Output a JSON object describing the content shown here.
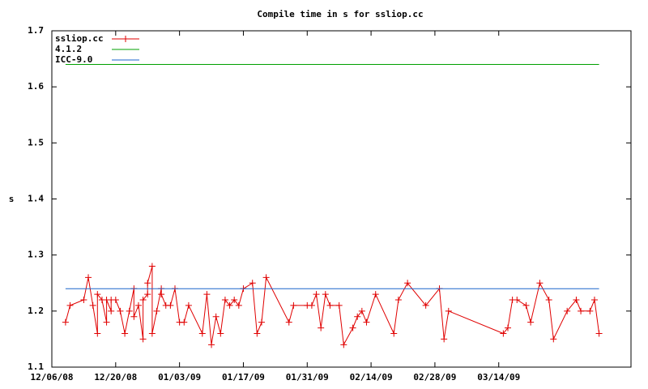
{
  "chart_data": {
    "type": "line",
    "title": "Compile time in s for ssliop.cc",
    "y_label": "s",
    "xlim": [
      "2008-12-06",
      "2009-04-12"
    ],
    "xticks": [
      {
        "value": "2008-12-06",
        "label": "12/06/08"
      },
      {
        "value": "2008-12-20",
        "label": "12/20/08"
      },
      {
        "value": "2009-01-03",
        "label": "01/03/09"
      },
      {
        "value": "2009-01-17",
        "label": "01/17/09"
      },
      {
        "value": "2009-01-31",
        "label": "01/31/09"
      },
      {
        "value": "2009-02-14",
        "label": "02/14/09"
      },
      {
        "value": "2009-02-28",
        "label": "02/28/09"
      },
      {
        "value": "2009-03-14",
        "label": "03/14/09"
      }
    ],
    "ylim": [
      1.1,
      1.7
    ],
    "yticks": [
      1.1,
      1.2,
      1.3,
      1.4,
      1.5,
      1.6,
      1.7
    ],
    "legend": "top-left",
    "series": [
      {
        "name": "ssliop.cc",
        "color": "#e00000",
        "marker": "plus",
        "x": [
          "2008-12-09",
          "2008-12-10",
          "2008-12-13",
          "2008-12-14",
          "2008-12-15",
          "2008-12-16",
          "2008-12-16",
          "2008-12-17",
          "2008-12-18",
          "2008-12-18",
          "2008-12-19",
          "2008-12-19",
          "2008-12-20",
          "2008-12-21",
          "2008-12-22",
          "2008-12-23",
          "2008-12-24",
          "2008-12-24",
          "2008-12-25",
          "2008-12-26",
          "2008-12-26",
          "2008-12-27",
          "2008-12-27",
          "2008-12-28",
          "2008-12-28",
          "2008-12-29",
          "2008-12-30",
          "2008-12-30",
          "2008-12-31",
          "2009-01-01",
          "2009-01-02",
          "2009-01-03",
          "2009-01-04",
          "2009-01-05",
          "2009-01-08",
          "2009-01-09",
          "2009-01-10",
          "2009-01-11",
          "2009-01-12",
          "2009-01-13",
          "2009-01-14",
          "2009-01-15",
          "2009-01-16",
          "2009-01-17",
          "2009-01-19",
          "2009-01-20",
          "2009-01-21",
          "2009-01-22",
          "2009-01-27",
          "2009-01-28",
          "2009-01-31",
          "2009-02-01",
          "2009-02-02",
          "2009-02-03",
          "2009-02-04",
          "2009-02-05",
          "2009-02-07",
          "2009-02-08",
          "2009-02-10",
          "2009-02-11",
          "2009-02-12",
          "2009-02-13",
          "2009-02-15",
          "2009-02-19",
          "2009-02-20",
          "2009-02-22",
          "2009-02-26",
          "2009-03-01",
          "2009-03-02",
          "2009-03-03",
          "2009-03-15",
          "2009-03-16",
          "2009-03-17",
          "2009-03-18",
          "2009-03-20",
          "2009-03-21",
          "2009-03-23",
          "2009-03-25",
          "2009-03-26",
          "2009-03-29",
          "2009-03-31",
          "2009-04-01",
          "2009-04-03",
          "2009-04-04",
          "2009-04-05"
        ],
        "values": [
          1.18,
          1.21,
          1.22,
          1.26,
          1.21,
          1.16,
          1.23,
          1.22,
          1.18,
          1.22,
          1.2,
          1.22,
          1.22,
          1.2,
          1.16,
          1.2,
          1.24,
          1.19,
          1.21,
          1.15,
          1.22,
          1.23,
          1.25,
          1.28,
          1.16,
          1.2,
          1.24,
          1.23,
          1.21,
          1.21,
          1.24,
          1.18,
          1.18,
          1.21,
          1.16,
          1.23,
          1.14,
          1.19,
          1.16,
          1.22,
          1.21,
          1.22,
          1.21,
          1.24,
          1.25,
          1.16,
          1.18,
          1.26,
          1.18,
          1.21,
          1.21,
          1.21,
          1.23,
          1.17,
          1.23,
          1.21,
          1.21,
          1.14,
          1.17,
          1.19,
          1.2,
          1.18,
          1.23,
          1.16,
          1.22,
          1.25,
          1.21,
          1.24,
          1.15,
          1.2,
          1.16,
          1.17,
          1.22,
          1.22,
          1.21,
          1.18,
          1.25,
          1.22,
          1.15,
          1.2,
          1.22,
          1.2,
          1.2,
          1.22,
          1.16
        ]
      },
      {
        "name": "4.1.2",
        "color": "#00a000",
        "x": [
          "2008-12-09",
          "2009-04-05"
        ],
        "values": [
          1.64,
          1.64
        ]
      },
      {
        "name": "ICC-9.0",
        "color": "#1a66cc",
        "x": [
          "2008-12-09",
          "2009-04-05"
        ],
        "values": [
          1.24,
          1.24
        ]
      }
    ]
  }
}
